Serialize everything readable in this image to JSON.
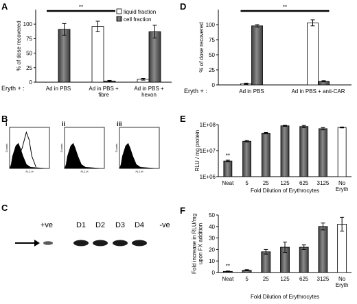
{
  "chart_data": [
    {
      "panel": "A",
      "type": "bar",
      "ylabel": "% of dose recovered",
      "ylim": [
        0,
        125
      ],
      "yticks": [
        0,
        25,
        50,
        75,
        100
      ],
      "row_label": "Eryth +  :",
      "categories": [
        "Ad in PBS",
        "Ad in PBS +\nfibre",
        "Ad in PBS +\nhexon"
      ],
      "series": [
        {
          "name": "liquid fraction",
          "color": "#ffffff",
          "values": [
            0,
            96,
            5
          ],
          "errors": [
            0,
            9,
            1.5
          ]
        },
        {
          "name": "cell fraction",
          "color": "#666666",
          "values": [
            91,
            2,
            87
          ],
          "errors": [
            10,
            1,
            11
          ]
        }
      ],
      "legend_position": "top-right",
      "significance": "**",
      "significance_span": [
        0,
        1
      ]
    },
    {
      "panel": "D",
      "type": "bar",
      "ylabel": "% of dose recovered",
      "ylim": [
        0,
        125
      ],
      "yticks": [
        0,
        25,
        50,
        75,
        100
      ],
      "row_label": "Eryth +  :",
      "categories": [
        "Ad in PBS",
        "Ad in PBS + anti-CAR"
      ],
      "series": [
        {
          "name": "liquid fraction",
          "color": "#ffffff",
          "values": [
            2,
            103
          ],
          "errors": [
            1,
            5
          ]
        },
        {
          "name": "cell fraction",
          "color": "#666666",
          "values": [
            98,
            6
          ],
          "errors": [
            2,
            1
          ]
        }
      ],
      "significance": "**",
      "significance_span": [
        0,
        1
      ]
    },
    {
      "panel": "B",
      "type": "histogram",
      "subpanels": [
        "i",
        "ii",
        "iii"
      ],
      "xlabel": "FL2-H",
      "ylabel": "Counts"
    },
    {
      "panel": "C",
      "type": "blot",
      "lanes": [
        "+ve",
        "D1",
        "D2",
        "D3",
        "D4",
        "-ve"
      ],
      "band_intensity": [
        0.45,
        1,
        0.95,
        0.9,
        1,
        0
      ]
    },
    {
      "panel": "E",
      "type": "bar",
      "scale": "log",
      "ylabel": "RLU / mg protein",
      "xlabel": "Fold Dilution of Erythrocytes",
      "ylim": [
        1000000,
        100000000
      ],
      "ytick_labels": [
        "1E+06",
        "1E+07",
        "1E+08"
      ],
      "categories": [
        "Neat",
        "5",
        "25",
        "125",
        "625",
        "3125",
        "No\nEryth"
      ],
      "values": [
        4000000,
        23000000,
        47000000,
        90000000,
        85000000,
        70000000,
        78000000
      ],
      "errors": [
        300000,
        1500000,
        3000000,
        4000000,
        8000000,
        7000000,
        3000000
      ],
      "colors": [
        "#666666",
        "#666666",
        "#666666",
        "#666666",
        "#666666",
        "#666666",
        "#ffffff"
      ],
      "significance": "**",
      "significance_index": 0
    },
    {
      "panel": "F",
      "type": "bar",
      "ylabel": "Fold increase in RLU/mg\nupon FX addition",
      "xlabel": "Fold Dilution of Erythrocytes",
      "ylim": [
        0,
        50
      ],
      "yticks": [
        0,
        10,
        20,
        30,
        40,
        50
      ],
      "categories": [
        "Neat",
        "5",
        "25",
        "125",
        "625",
        "3125",
        "No\nEryth"
      ],
      "values": [
        1,
        2,
        18,
        22,
        22,
        40,
        42
      ],
      "errors": [
        0.3,
        0.5,
        2,
        4.5,
        2,
        3,
        6
      ],
      "colors": [
        "#666666",
        "#666666",
        "#666666",
        "#666666",
        "#666666",
        "#666666",
        "#ffffff"
      ],
      "significance": "**",
      "significance_index": 0
    }
  ]
}
